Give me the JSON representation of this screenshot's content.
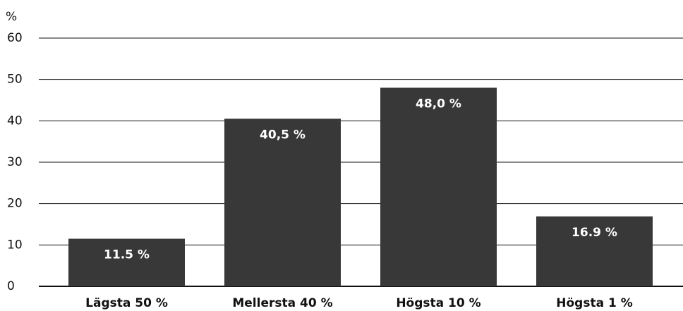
{
  "chart_data": {
    "type": "bar",
    "y_label": "%",
    "categories": [
      "Lägsta 50 %",
      "Mellersta 40 %",
      "Högsta 10 %",
      "Högsta 1 %"
    ],
    "values": [
      11.5,
      40.5,
      48.0,
      16.9
    ],
    "value_labels": [
      "11.5 %",
      "40,5 %",
      "48,0 %",
      "16.9 %"
    ],
    "color": "#383838",
    "ylim": [
      0,
      60
    ],
    "yticks": [
      0,
      10,
      20,
      30,
      40,
      50,
      60
    ],
    "grid": true
  }
}
